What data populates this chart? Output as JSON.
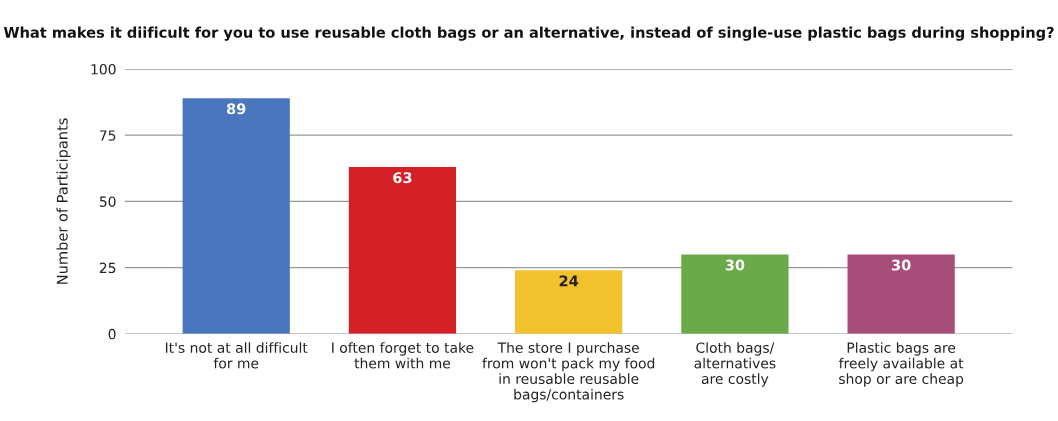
{
  "chart_data": {
    "type": "bar",
    "title": "What makes it diificult for you to use reusable cloth bags or an alternative, instead of single-use plastic bags during shopping?",
    "ylabel": "Number of Participants",
    "categories": [
      "It's not at all difficult\nfor me",
      "I often forget to take\nthem with me",
      "The store I purchase\nfrom won't pack my food\nin reusable reusable\nbags/containers",
      "Cloth bags/\nalternatives\nare costly",
      "Plastic bags are\nfreely available at\nshop or are cheap"
    ],
    "values": [
      89,
      63,
      24,
      30,
      30
    ],
    "colors": [
      "#4a76be",
      "#d42027",
      "#f2c12e",
      "#6aaa4a",
      "#a64d79"
    ],
    "ylim": [
      0,
      100
    ],
    "yticks": [
      0,
      25,
      50,
      75,
      100
    ],
    "grid": "y",
    "data_labels": true
  }
}
